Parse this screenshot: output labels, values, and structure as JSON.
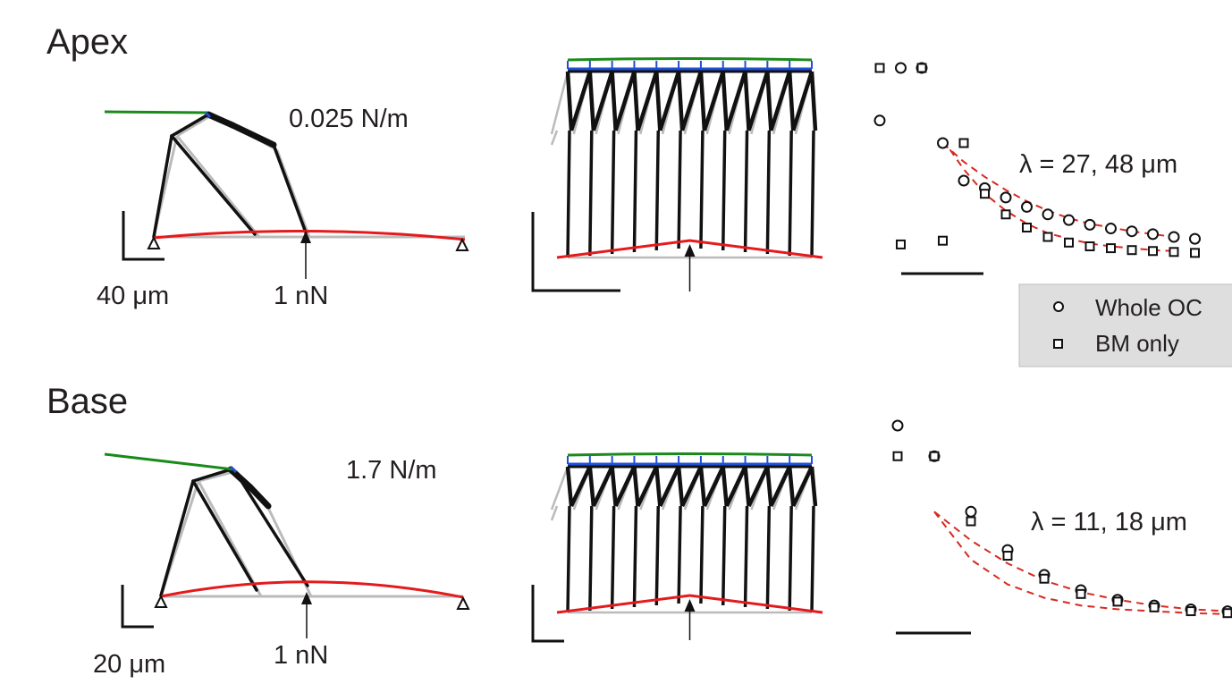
{
  "rows": [
    {
      "title": "Apex",
      "stiffness": "0.025 N/m",
      "scale_label": "40 μm",
      "force_label": "1 nN",
      "lambda_text": "λ = 27, 48 μm",
      "decay": {
        "whole_oc": [
          0.72,
          1.0,
          1.0,
          0.6,
          0.4,
          0.36,
          0.31,
          0.26,
          0.22,
          0.19,
          0.165,
          0.145,
          0.13,
          0.115,
          0.1,
          0.09
        ],
        "bm_only": [
          1.0,
          0.06,
          1.0,
          0.08,
          0.6,
          0.33,
          0.22,
          0.15,
          0.1,
          0.07,
          0.05,
          0.04,
          0.03,
          0.025,
          0.02,
          0.015
        ],
        "fit_whole_oc": [
          0.6,
          0.5,
          0.42,
          0.35,
          0.29,
          0.24,
          0.2,
          0.17,
          0.15,
          0.13,
          0.115,
          0.1
        ],
        "fit_bm_only": [
          0.62,
          0.46,
          0.33,
          0.24,
          0.17,
          0.12,
          0.09,
          0.065,
          0.05,
          0.04,
          0.03,
          0.025
        ]
      }
    },
    {
      "title": "Base",
      "stiffness": "1.7 N/m",
      "scale_label": "20 μm",
      "force_label": "1 nN",
      "lambda_text": "λ = 11, 18 μm",
      "decay": {
        "whole_oc": [
          1.0,
          0.84,
          0.55,
          0.35,
          0.22,
          0.14,
          0.09,
          0.06,
          0.04,
          0.03
        ],
        "bm_only": [
          0.84,
          0.84,
          0.5,
          0.32,
          0.2,
          0.12,
          0.08,
          0.05,
          0.03,
          0.02
        ],
        "fit_whole_oc": [
          0.55,
          0.4,
          0.28,
          0.19,
          0.13,
          0.09,
          0.06,
          0.04,
          0.03
        ],
        "fit_bm_only": [
          0.55,
          0.3,
          0.17,
          0.1,
          0.06,
          0.04,
          0.03,
          0.02,
          0.015
        ]
      }
    }
  ],
  "legend": {
    "whole_oc": "Whole OC",
    "bm_only": "BM only"
  },
  "colors": {
    "tectorial": "#1a8a1a",
    "basilar": "#e41a1c",
    "reticular": "#1f4fd6",
    "deformed": "#111111",
    "undeformed": "#bbbbbb",
    "fit": "#d62a1f",
    "legend_bg": "#dedede"
  }
}
